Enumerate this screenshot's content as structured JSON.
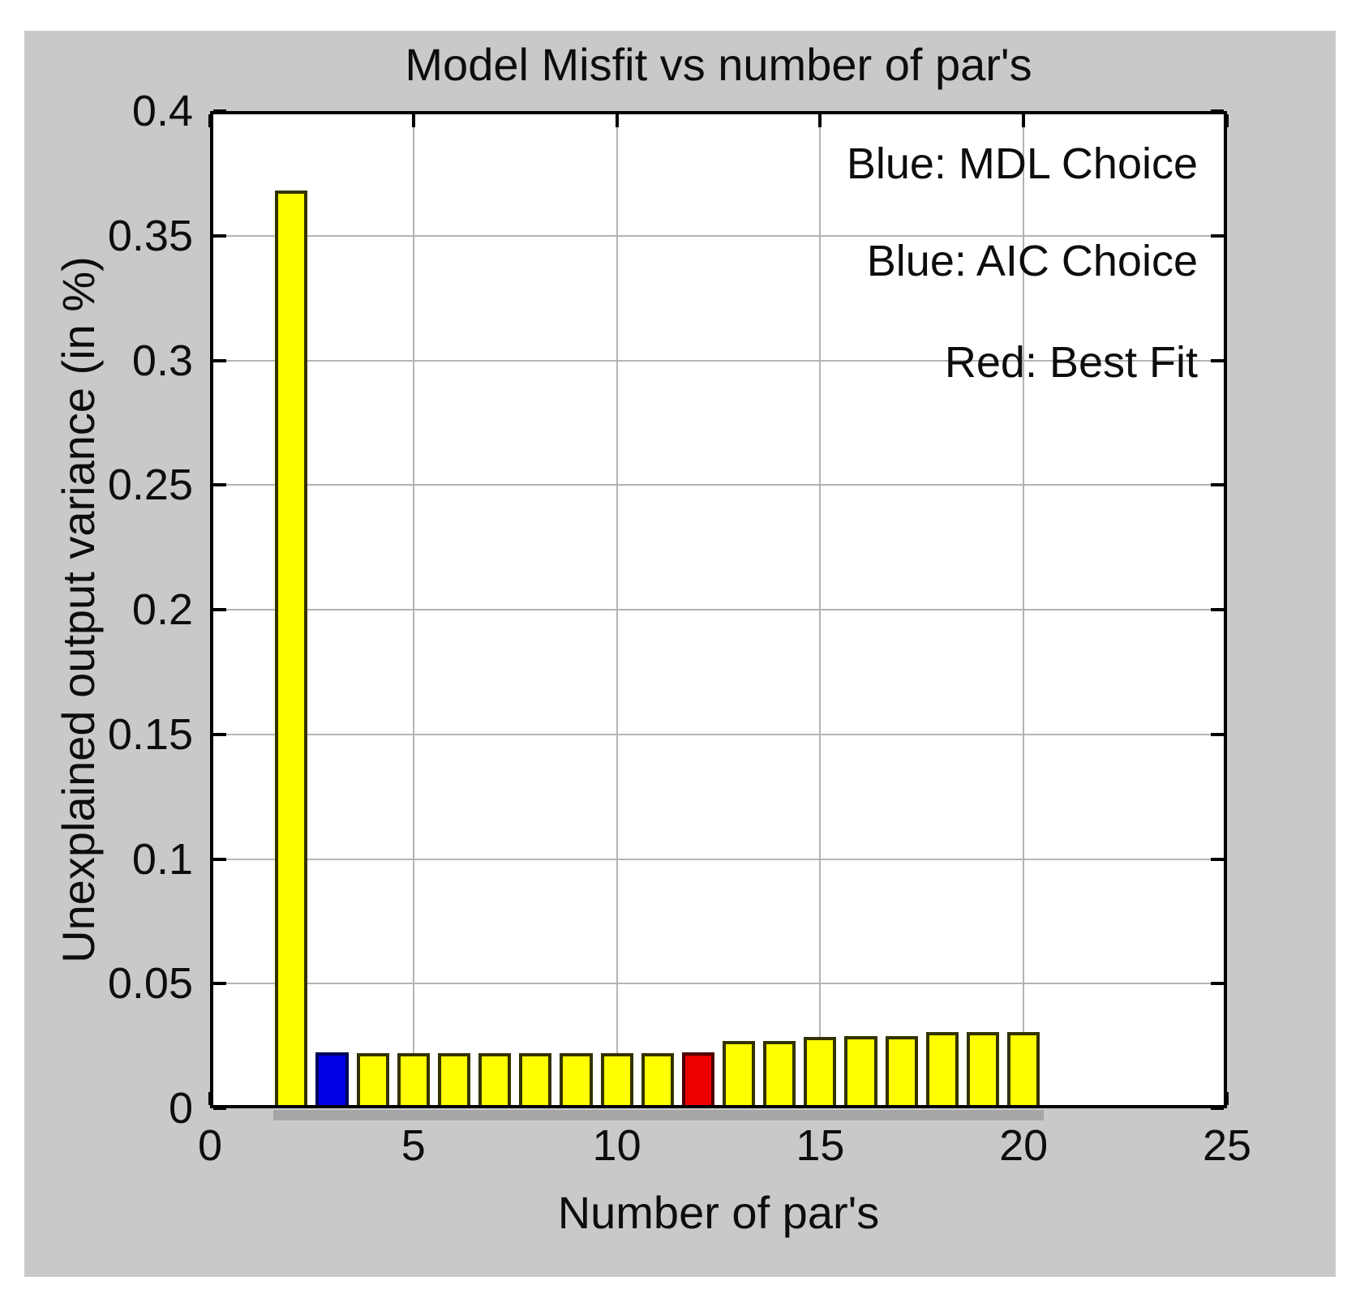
{
  "colors": {
    "figure_background": "#c9c9c9",
    "plot_background": "#ffffff",
    "grid": "#b4b4b4",
    "axis": "#000000",
    "text": "#0d0d0d",
    "bar_shadow": "#a6a6a6",
    "bar": {
      "yellow": {
        "fill": "#ffff00",
        "edge": "#333300"
      },
      "blue": {
        "fill": "#0000e6",
        "edge": "#000059"
      },
      "red": {
        "fill": "#ee0000",
        "edge": "#4d0000"
      }
    }
  },
  "chart_data": {
    "type": "bar",
    "title": "Model Misfit vs number of par's",
    "xlabel": "Number of par's",
    "ylabel": "Unexplained output variance (in %)",
    "xlim": [
      0,
      25
    ],
    "ylim": [
      0,
      0.4
    ],
    "grid": true,
    "bar_width": 0.8,
    "xticks": [
      0,
      5,
      10,
      15,
      20,
      25
    ],
    "xtick_labels": [
      "0",
      "5",
      "10",
      "15",
      "20",
      "25"
    ],
    "yticks": [
      0,
      0.05,
      0.1,
      0.15,
      0.2,
      0.25,
      0.3,
      0.35,
      0.4
    ],
    "ytick_labels": [
      "0",
      "0.05",
      "0.1",
      "0.15",
      "0.2",
      "0.25",
      "0.3",
      "0.35",
      "0.4"
    ],
    "annotations": [
      "Blue: MDL Choice",
      "Blue: AIC Choice",
      "Red: Best Fit"
    ],
    "annotation_meaning": {
      "blue": "MDL / AIC Choice",
      "red": "Best Fit",
      "yellow": "other model orders"
    },
    "bars": [
      {
        "x": 2,
        "value": 0.368,
        "color": "yellow"
      },
      {
        "x": 3,
        "value": 0.0225,
        "color": "blue"
      },
      {
        "x": 4,
        "value": 0.022,
        "color": "yellow"
      },
      {
        "x": 5,
        "value": 0.022,
        "color": "yellow"
      },
      {
        "x": 6,
        "value": 0.022,
        "color": "yellow"
      },
      {
        "x": 7,
        "value": 0.022,
        "color": "yellow"
      },
      {
        "x": 8,
        "value": 0.022,
        "color": "yellow"
      },
      {
        "x": 9,
        "value": 0.022,
        "color": "yellow"
      },
      {
        "x": 10,
        "value": 0.022,
        "color": "yellow"
      },
      {
        "x": 11,
        "value": 0.022,
        "color": "yellow"
      },
      {
        "x": 12,
        "value": 0.0225,
        "color": "red"
      },
      {
        "x": 13,
        "value": 0.027,
        "color": "yellow"
      },
      {
        "x": 14,
        "value": 0.027,
        "color": "yellow"
      },
      {
        "x": 15,
        "value": 0.0285,
        "color": "yellow"
      },
      {
        "x": 16,
        "value": 0.029,
        "color": "yellow"
      },
      {
        "x": 17,
        "value": 0.029,
        "color": "yellow"
      },
      {
        "x": 18,
        "value": 0.0305,
        "color": "yellow"
      },
      {
        "x": 19,
        "value": 0.0305,
        "color": "yellow"
      },
      {
        "x": 20,
        "value": 0.0305,
        "color": "yellow"
      }
    ],
    "legend_position": "top-right-inside",
    "tick_direction": "in"
  }
}
